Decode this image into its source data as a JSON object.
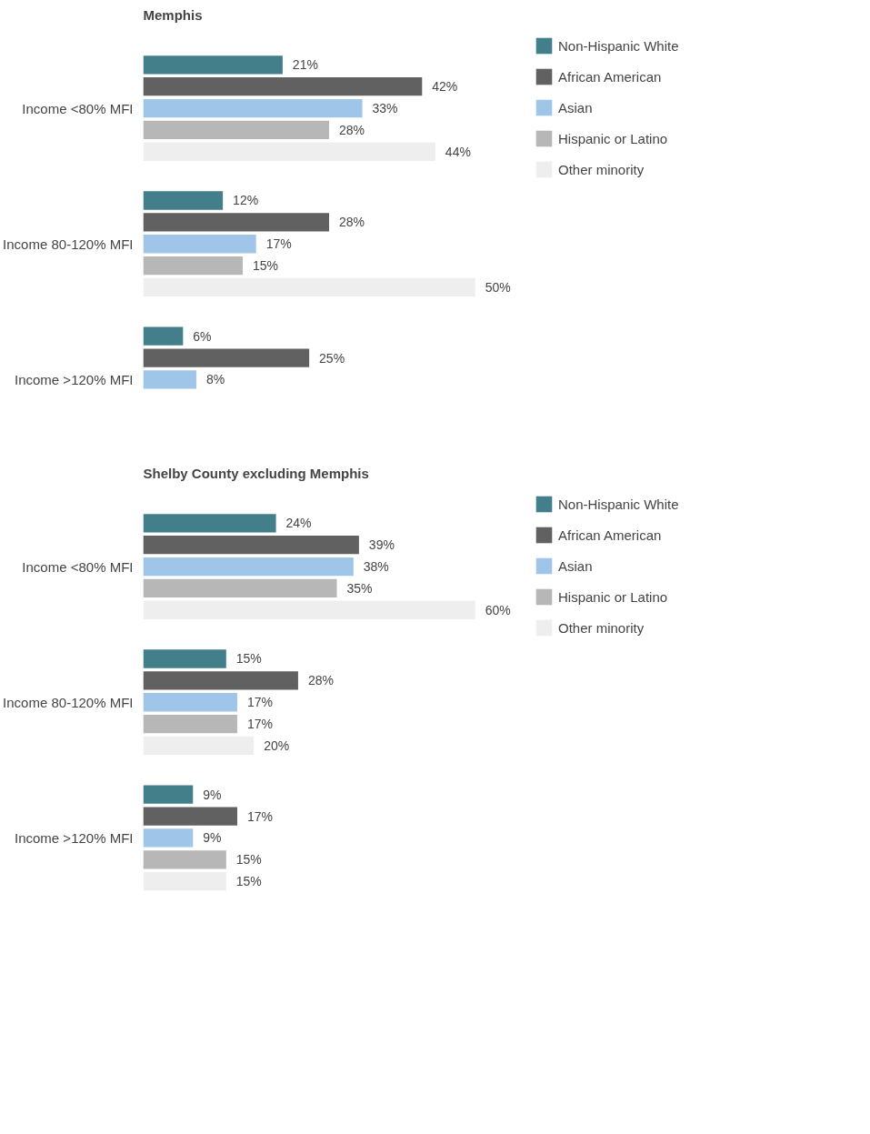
{
  "chart_data": [
    {
      "type": "bar",
      "orientation": "horizontal",
      "title": "Memphis",
      "categories": [
        "Income <80% MFI",
        "Income 80-120% MFI",
        "Income >120% MFI"
      ],
      "legend": "right",
      "grid": false,
      "series": [
        {
          "name": "Non-Hispanic White",
          "color": "#437f8b",
          "values": [
            21,
            12,
            6
          ],
          "value_labels": [
            "21%",
            "12%",
            "6%"
          ]
        },
        {
          "name": "African American",
          "color": "#616161",
          "values": [
            42,
            28,
            25
          ],
          "value_labels": [
            "42%",
            "28%",
            "25%"
          ]
        },
        {
          "name": "Asian",
          "color": "#9fc5e8",
          "values": [
            33,
            17,
            8
          ],
          "value_labels": [
            "33%",
            "17%",
            "8%"
          ]
        },
        {
          "name": "Hispanic or Latino",
          "color": "#b7b7b7",
          "values": [
            28,
            15,
            null
          ],
          "value_labels": [
            "28%",
            "15%",
            null
          ]
        },
        {
          "name": "Other minority",
          "color": "#eeeeee",
          "values": [
            44,
            50,
            null
          ],
          "value_labels": [
            "44%",
            "50%",
            null
          ]
        }
      ]
    },
    {
      "type": "bar",
      "orientation": "horizontal",
      "title": "Shelby County excluding Memphis",
      "categories": [
        "Income <80% MFI",
        "Income 80-120% MFI",
        "Income >120% MFI"
      ],
      "legend": "right",
      "grid": false,
      "series": [
        {
          "name": "Non-Hispanic White",
          "color": "#437f8b",
          "values": [
            24,
            15,
            9
          ],
          "value_labels": [
            "24%",
            "15%",
            "9%"
          ]
        },
        {
          "name": "African American",
          "color": "#616161",
          "values": [
            39,
            28,
            17
          ],
          "value_labels": [
            "39%",
            "28%",
            "17%"
          ]
        },
        {
          "name": "Asian",
          "color": "#9fc5e8",
          "values": [
            38,
            17,
            9
          ],
          "value_labels": [
            "38%",
            "17%",
            "9%"
          ]
        },
        {
          "name": "Hispanic or Latino",
          "color": "#b7b7b7",
          "values": [
            35,
            17,
            15
          ],
          "value_labels": [
            "35%",
            "17%",
            "15%"
          ]
        },
        {
          "name": "Other minority",
          "color": "#eeeeee",
          "values": [
            60,
            20,
            15
          ],
          "value_labels": [
            "60%",
            "20%",
            "15%"
          ]
        }
      ]
    }
  ]
}
